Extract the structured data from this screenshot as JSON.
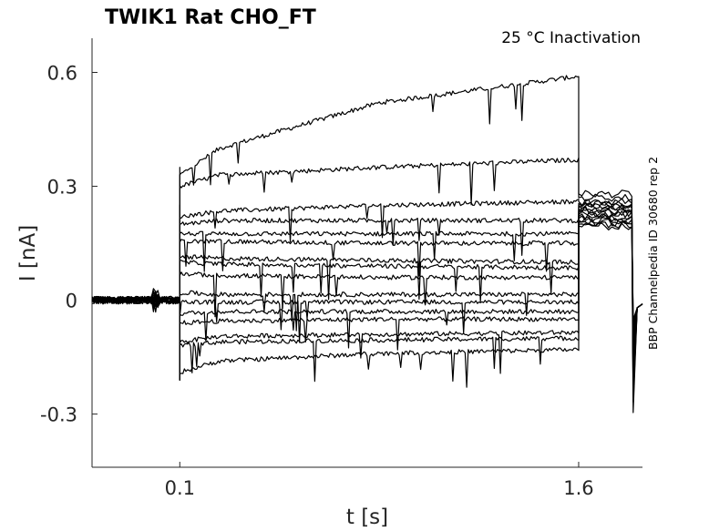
{
  "chart_data": {
    "type": "line",
    "title": "TWIK1  Rat  CHO_FT",
    "annotation": "25 °C  Inactivation",
    "side_label": "BBP Channelpedia ID 30680 rep 2",
    "xlabel": "t [s]",
    "ylabel": "I [nA]",
    "xlim": [
      -0.23,
      1.84
    ],
    "ylim": [
      -0.44,
      0.69
    ],
    "x_ticks": [
      0.1,
      1.6
    ],
    "x_tick_labels": [
      "0.1",
      "1.6"
    ],
    "y_ticks": [
      0.6,
      0.3,
      0,
      -0.3
    ],
    "y_tick_labels": [
      "0.6",
      "0.3",
      "0",
      "-0.3"
    ],
    "grid": false,
    "legend": "none",
    "pulse_window": [
      0.1,
      1.6
    ],
    "tail_end": 1.8,
    "series": [
      {
        "values": {
          "start": 0.33,
          "early": 0.4,
          "mid": 0.52,
          "end": 0.59,
          "tail": 0.28
        }
      },
      {
        "values": {
          "start": 0.3,
          "early": 0.33,
          "mid": 0.35,
          "end": 0.37,
          "tail": 0.27
        }
      },
      {
        "values": {
          "start": 0.22,
          "early": 0.235,
          "mid": 0.25,
          "end": 0.26,
          "tail": 0.26
        }
      },
      {
        "values": {
          "start": 0.2,
          "early": 0.21,
          "mid": 0.21,
          "end": 0.21,
          "tail": 0.255
        }
      },
      {
        "values": {
          "start": 0.175,
          "early": 0.175,
          "mid": 0.175,
          "end": 0.175,
          "tail": 0.25
        }
      },
      {
        "values": {
          "start": 0.155,
          "early": 0.155,
          "mid": 0.15,
          "end": 0.15,
          "tail": 0.245
        }
      },
      {
        "values": {
          "start": 0.115,
          "early": 0.11,
          "mid": 0.105,
          "end": 0.1,
          "tail": 0.24
        }
      },
      {
        "values": {
          "start": 0.1,
          "early": 0.095,
          "mid": 0.09,
          "end": 0.085,
          "tail": 0.235
        }
      },
      {
        "values": {
          "start": 0.07,
          "early": 0.065,
          "mid": 0.06,
          "end": 0.06,
          "tail": 0.23
        }
      },
      {
        "values": {
          "start": 0.02,
          "early": 0.015,
          "mid": 0.015,
          "end": 0.015,
          "tail": 0.225
        }
      },
      {
        "values": {
          "start": -0.005,
          "early": -0.005,
          "mid": -0.005,
          "end": -0.005,
          "tail": 0.22
        }
      },
      {
        "values": {
          "start": -0.035,
          "early": -0.03,
          "mid": -0.03,
          "end": -0.03,
          "tail": 0.215
        }
      },
      {
        "values": {
          "start": -0.06,
          "early": -0.055,
          "mid": -0.05,
          "end": -0.05,
          "tail": 0.21
        }
      },
      {
        "values": {
          "start": -0.11,
          "early": -0.095,
          "mid": -0.09,
          "end": -0.085,
          "tail": 0.205
        }
      },
      {
        "values": {
          "start": -0.12,
          "early": -0.11,
          "mid": -0.105,
          "end": -0.1,
          "tail": 0.2
        }
      },
      {
        "values": {
          "start": -0.19,
          "early": -0.16,
          "mid": -0.14,
          "end": -0.13,
          "tail": 0.195
        }
      }
    ]
  }
}
